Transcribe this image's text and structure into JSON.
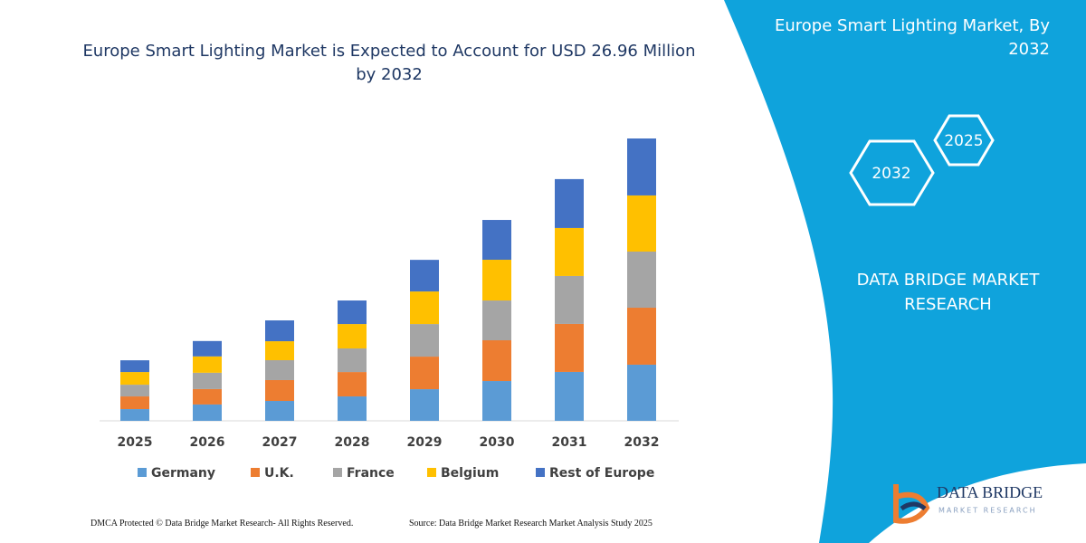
{
  "chart_data": {
    "type": "bar",
    "stacked": true,
    "title": "Europe Smart Lighting Market is Expected to Account for USD 26.96 Million by 2032",
    "categories": [
      "2025",
      "2026",
      "2027",
      "2028",
      "2029",
      "2030",
      "2031",
      "2032"
    ],
    "series": [
      {
        "name": "Germany",
        "color": "#5b9bd5",
        "values": [
          1.12,
          1.56,
          1.9,
          2.33,
          3.02,
          3.8,
          4.67,
          5.36
        ]
      },
      {
        "name": "U.K.",
        "color": "#ed7d31",
        "values": [
          1.21,
          1.47,
          1.99,
          2.33,
          3.11,
          3.89,
          4.58,
          5.44
        ]
      },
      {
        "name": "France",
        "color": "#a5a5a5",
        "values": [
          1.12,
          1.56,
          1.9,
          2.25,
          3.11,
          3.8,
          4.58,
          5.36
        ]
      },
      {
        "name": "Belgium",
        "color": "#ffc000",
        "values": [
          1.21,
          1.56,
          1.81,
          2.33,
          3.11,
          3.89,
          4.58,
          5.36
        ]
      },
      {
        "name": "Rest of Europe",
        "color": "#4472c4",
        "values": [
          1.12,
          1.47,
          1.99,
          2.25,
          3.02,
          3.8,
          4.67,
          5.44
        ]
      }
    ],
    "legend": "bottom"
  },
  "panel": {
    "title": "Europe Smart Lighting Market, By 2032",
    "hex_labels": [
      "2025",
      "2032"
    ],
    "brand": "DATA BRIDGE MARKET RESEARCH"
  },
  "logo": {
    "name": "DATA BRIDGE",
    "tagline": "MARKET RESEARCH"
  },
  "footer": {
    "left": "DMCA Protected © Data Bridge Market Research-  All Rights Reserved.",
    "right": "Source: Data Bridge Market Research  Market Analysis Study 2025"
  }
}
